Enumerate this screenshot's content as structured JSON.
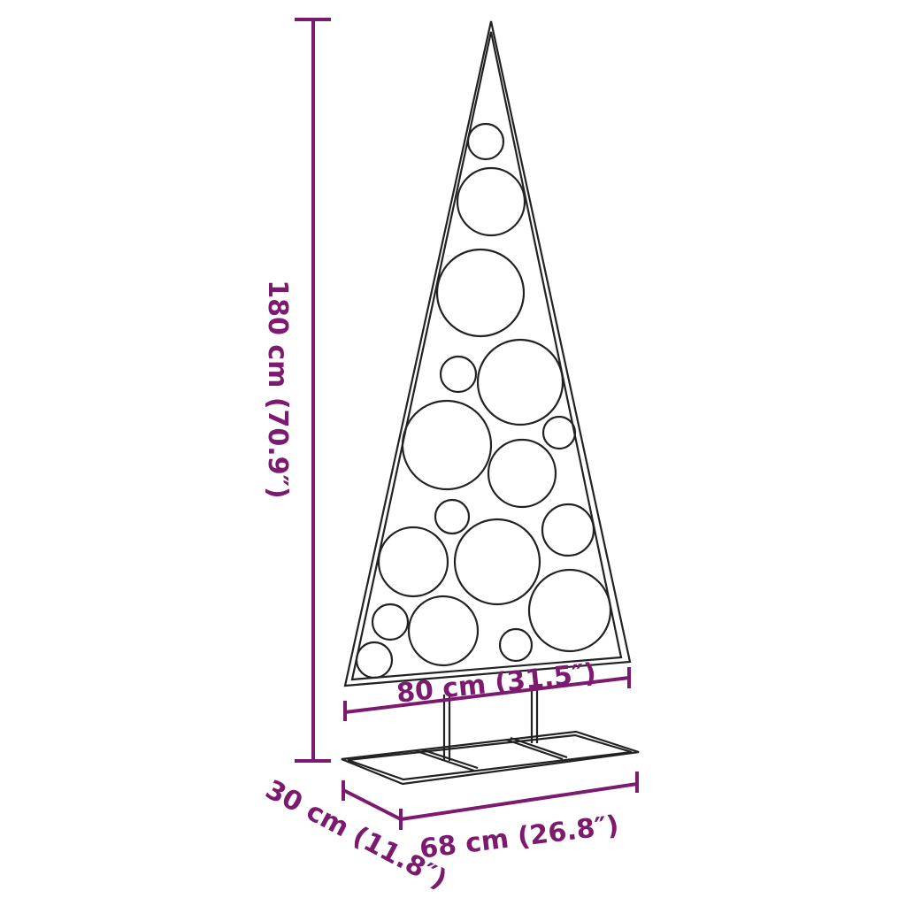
{
  "dimensions": {
    "height": "180 cm (70.9″)",
    "width_top": "80 cm (31.5″)",
    "base_length": "68 cm (26.8″)",
    "base_depth": "30 cm (11.8″)"
  },
  "colors": {
    "dimension": "#7b1a6e",
    "product_line": "#222222"
  },
  "product": "metal christmas tree with circular ornaments on rectangular base"
}
